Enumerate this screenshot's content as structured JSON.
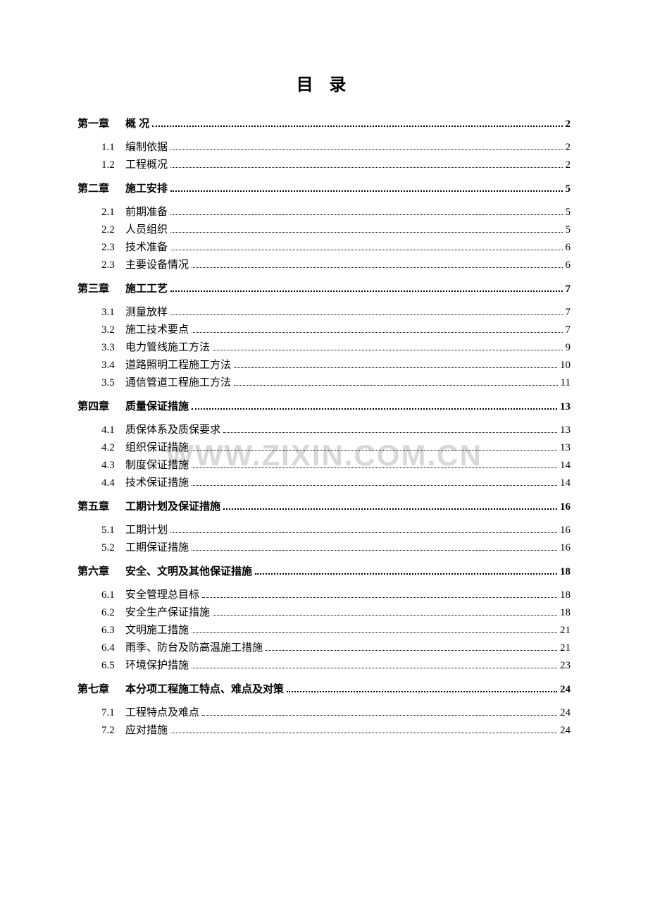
{
  "title": "目  录",
  "watermark": "WWW.ZIXIN.COM.CN",
  "colors": {
    "background": "#ffffff",
    "text": "#000000",
    "watermark": "#d8d8d8"
  },
  "typography": {
    "title_fontsize": 24,
    "body_fontsize": 15,
    "watermark_fontsize": 42
  },
  "chapters": [
    {
      "label": "第一章",
      "title": "概    况",
      "page": "2",
      "sections": [
        {
          "num": "1.1",
          "title": "编制依据",
          "page": "2"
        },
        {
          "num": "1.2",
          "title": "工程概况",
          "page": "2"
        }
      ]
    },
    {
      "label": "第二章",
      "title": "施工安排",
      "page": "5",
      "sections": [
        {
          "num": "2.1",
          "title": "前期准备",
          "page": "5"
        },
        {
          "num": "2.2",
          "title": "人员组织",
          "page": "5"
        },
        {
          "num": "2.3",
          "title": "技术准备",
          "page": "6"
        },
        {
          "num": "2.3",
          "title": "主要设备情况",
          "page": "6"
        }
      ]
    },
    {
      "label": "第三章",
      "title": "施工工艺",
      "page": "7",
      "sections": [
        {
          "num": "3.1",
          "title": "测量放样",
          "page": "7"
        },
        {
          "num": "3.2",
          "title": "施工技术要点",
          "page": "7"
        },
        {
          "num": "3.3",
          "title": "电力管线施工方法",
          "page": "9"
        },
        {
          "num": "3.4",
          "title": "道路照明工程施工方法",
          "page": "10"
        },
        {
          "num": "3.5",
          "title": "通信管道工程施工方法",
          "page": "11"
        }
      ]
    },
    {
      "label": "第四章",
      "title": "质量保证措施",
      "page": "13",
      "sections": [
        {
          "num": "4.1",
          "title": "质保体系及质保要求",
          "page": "13"
        },
        {
          "num": "4.2",
          "title": "组织保证措施",
          "page": "13"
        },
        {
          "num": "4.3",
          "title": "制度保证措施",
          "page": "14"
        },
        {
          "num": "4.4",
          "title": "技术保证措施",
          "page": "14"
        }
      ]
    },
    {
      "label": "第五章",
      "title": "工期计划及保证措施",
      "page": "16",
      "sections": [
        {
          "num": "5.1",
          "title": "工期计划",
          "page": "16"
        },
        {
          "num": "5.2",
          "title": "工期保证措施",
          "page": "16"
        }
      ]
    },
    {
      "label": "第六章",
      "title": "安全、文明及其他保证措施",
      "page": "18",
      "sections": [
        {
          "num": "6.1",
          "title": "安全管理总目标",
          "page": "18"
        },
        {
          "num": "6.2",
          "title": "安全生产保证措施",
          "page": "18"
        },
        {
          "num": "6.3",
          "title": "文明施工措施",
          "page": "21"
        },
        {
          "num": "6.4",
          "title": "雨季、防台及防高温施工措施",
          "page": "21"
        },
        {
          "num": "6.5",
          "title": "环境保护措施",
          "page": "23"
        }
      ]
    },
    {
      "label": "第七章",
      "title": "本分项工程施工特点、难点及对策",
      "page": "24",
      "sections": [
        {
          "num": "7.1",
          "title": "工程特点及难点",
          "page": "24"
        },
        {
          "num": "7.2",
          "title": " 应对措施",
          "page": "24"
        }
      ]
    }
  ]
}
